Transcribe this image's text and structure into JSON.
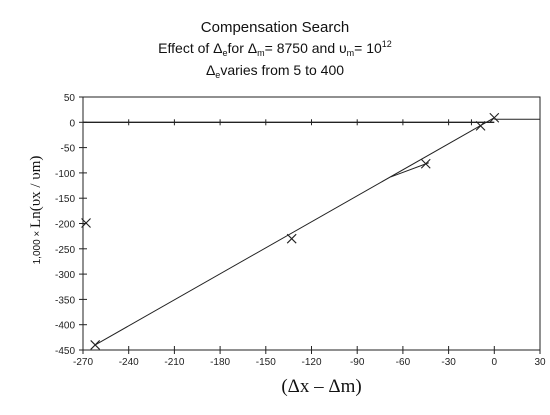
{
  "chart_data": {
    "type": "scatter",
    "title": "Compensation Search",
    "subtitle_parts": {
      "a": "Effect of ",
      "b": "Δ",
      "c": "e",
      "d": "for ",
      "e": "Δ",
      "f": "m",
      "g": "= 8750 and ",
      "h": "υ",
      "i": "m",
      "j": "= 10",
      "k": "12"
    },
    "range_parts": {
      "a": "Δ",
      "b": "e",
      "c": "varies from 5 to 400"
    },
    "ylabel_prefix": "1,000 ×",
    "ylabel_main": "Ln(υx / υm)",
    "xlabel": "(Δx – Δm)",
    "xlim": [
      -270,
      30
    ],
    "ylim": [
      -450,
      50
    ],
    "xticks": [
      -270,
      -240,
      -210,
      -180,
      -150,
      -120,
      -90,
      -60,
      -30,
      0,
      30
    ],
    "yticks": [
      50,
      0,
      -50,
      -100,
      -150,
      -200,
      -250,
      -300,
      -350,
      -400,
      -450
    ],
    "zero_line_tick_x": [
      -240,
      -210,
      -180,
      -150,
      -120,
      -90,
      -60,
      -30,
      -15
    ],
    "points": [
      {
        "x": -262,
        "y": -440
      },
      {
        "x": -133,
        "y": -230
      },
      {
        "x": -45,
        "y": -82
      },
      {
        "x": -9,
        "y": -7
      },
      {
        "x": 0,
        "y": 9
      },
      {
        "x": -268,
        "y": -199
      }
    ],
    "fit_line": [
      {
        "x": -262,
        "y": -440
      },
      {
        "x": 0,
        "y": 9
      }
    ],
    "side_segment": [
      {
        "x": -68,
        "y": -108
      },
      {
        "x": -43,
        "y": -80
      }
    ],
    "grid": false
  }
}
